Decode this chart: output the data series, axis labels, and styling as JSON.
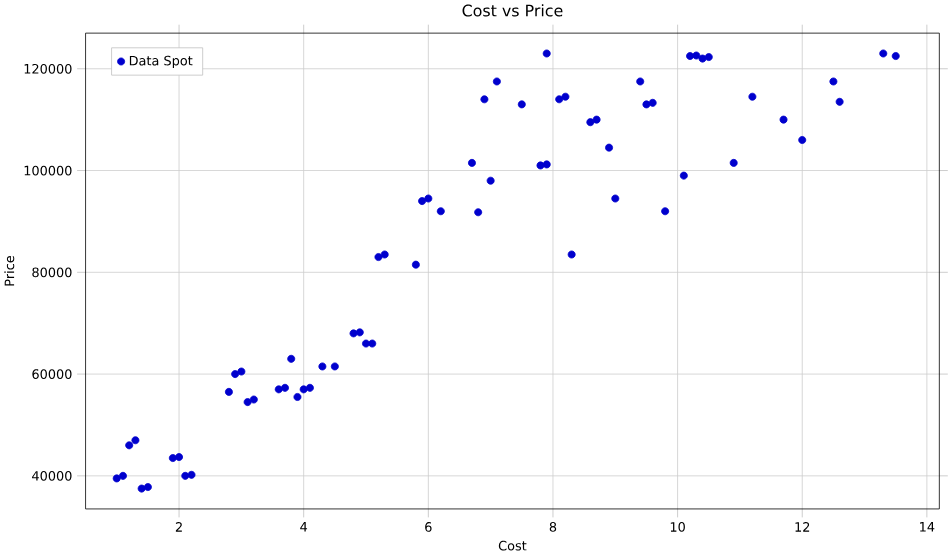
{
  "chart_data": {
    "type": "scatter",
    "title": "Cost vs Price",
    "xlabel": "Cost",
    "ylabel": "Price",
    "xlim": [
      0.5,
      14.2
    ],
    "ylim": [
      33500,
      127000
    ],
    "xticks": [
      2,
      4,
      6,
      8,
      10,
      12,
      14
    ],
    "yticks": [
      40000,
      60000,
      80000,
      100000,
      120000
    ],
    "grid": true,
    "legend": "top left",
    "marker": "circle",
    "series": [
      {
        "name": "Data Spot",
        "color": "#0000cd",
        "x": [
          1.0,
          1.1,
          1.2,
          1.3,
          1.4,
          1.5,
          1.9,
          2.0,
          2.1,
          2.2,
          2.8,
          2.9,
          3.0,
          3.1,
          3.2,
          3.6,
          3.7,
          3.8,
          3.9,
          4.0,
          4.1,
          4.3,
          4.5,
          4.8,
          4.9,
          5.0,
          5.1,
          5.2,
          5.3,
          5.8,
          5.9,
          6.0,
          6.2,
          6.7,
          6.8,
          6.9,
          7.0,
          7.1,
          7.5,
          7.8,
          7.9,
          7.9,
          8.1,
          8.2,
          8.3,
          8.6,
          8.7,
          8.9,
          9.0,
          9.4,
          9.5,
          9.6,
          9.8,
          10.1,
          10.2,
          10.3,
          10.4,
          10.5,
          10.9,
          11.2,
          11.7,
          12.0,
          12.5,
          12.6,
          13.3,
          13.5
        ],
        "values": [
          39500,
          40000,
          46000,
          47000,
          37500,
          37800,
          43500,
          43700,
          40000,
          40200,
          56500,
          60000,
          60500,
          54500,
          55000,
          57000,
          57300,
          63000,
          55500,
          57000,
          57300,
          61500,
          61500,
          68000,
          68200,
          66000,
          66000,
          83000,
          83500,
          81500,
          94000,
          94500,
          92000,
          101500,
          91800,
          114000,
          98000,
          117500,
          113000,
          101000,
          101200,
          123000,
          114000,
          114500,
          83500,
          109500,
          110000,
          104500,
          94500,
          117500,
          113000,
          113300,
          92000,
          99000,
          122500,
          122600,
          122000,
          122300,
          101500,
          114500,
          110000,
          106000,
          117500,
          113500,
          123000,
          122500
        ]
      }
    ]
  }
}
